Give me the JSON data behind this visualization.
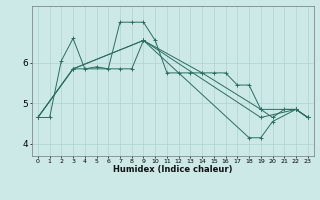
{
  "title": "",
  "xlabel": "Humidex (Indice chaleur)",
  "bg_color": "#cce9e8",
  "grid_color": "#add4d3",
  "line_color": "#2a6e62",
  "xlim": [
    -0.5,
    23.5
  ],
  "ylim": [
    3.7,
    7.4
  ],
  "yticks": [
    4,
    5,
    6
  ],
  "xticks": [
    0,
    1,
    2,
    3,
    4,
    5,
    6,
    7,
    8,
    9,
    10,
    11,
    12,
    13,
    14,
    15,
    16,
    17,
    18,
    19,
    20,
    21,
    22,
    23
  ],
  "lines": [
    {
      "x": [
        0,
        1,
        2,
        3,
        4,
        5,
        6,
        7,
        8,
        9,
        10,
        11,
        12,
        13,
        14,
        15,
        16,
        17,
        18,
        19,
        20,
        21,
        22,
        23
      ],
      "y": [
        4.65,
        4.65,
        6.05,
        6.6,
        5.85,
        5.9,
        5.85,
        7.0,
        7.0,
        7.0,
        6.55,
        5.75,
        5.75,
        5.75,
        5.75,
        5.75,
        5.75,
        5.45,
        5.45,
        4.85,
        4.65,
        4.85,
        4.85,
        4.65
      ]
    },
    {
      "x": [
        0,
        3,
        7,
        8,
        9,
        14,
        19,
        22,
        23
      ],
      "y": [
        4.65,
        5.85,
        5.85,
        5.85,
        6.55,
        5.75,
        4.85,
        4.85,
        4.65
      ]
    },
    {
      "x": [
        0,
        3,
        9,
        19,
        22,
        23
      ],
      "y": [
        4.65,
        5.85,
        6.55,
        4.65,
        4.85,
        4.65
      ]
    },
    {
      "x": [
        0,
        3,
        9,
        18,
        19,
        20,
        22,
        23
      ],
      "y": [
        4.65,
        5.85,
        6.55,
        4.15,
        4.15,
        4.55,
        4.85,
        4.65
      ]
    }
  ]
}
